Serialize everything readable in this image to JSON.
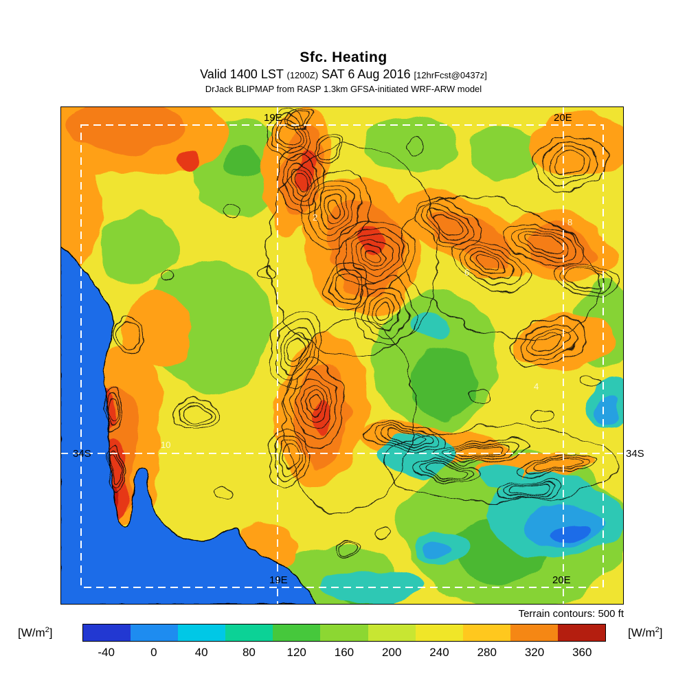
{
  "header": {
    "title": "Sfc. Heating",
    "valid": {
      "prefix": "Valid 1400 LST ",
      "zulu": "(1200Z)",
      "mid": " SAT 6 Aug 2016 ",
      "fcst": "[12hrFcst@0437z]"
    },
    "model_line": "DrJack BLIPMAP from RASP 1.3km GFSA-initiated WRF-ARW model"
  },
  "map": {
    "grid_labels": {
      "top_lon_1": "19E",
      "top_lon_2": "20E",
      "lat_left": "34S",
      "lat_right": "34S",
      "bottom_lon_1": "19E",
      "bottom_lon_2": "20E"
    },
    "faint_labels": [
      "2",
      "8",
      "6",
      "4",
      "10"
    ],
    "terrain_note": "Terrain contours: 500 ft"
  },
  "colorbar": {
    "ticks": [
      "-40",
      "0",
      "40",
      "80",
      "120",
      "160",
      "200",
      "240",
      "280",
      "320",
      "360"
    ],
    "segment_colors": [
      "#2238d2",
      "#1e8cf0",
      "#00c8e6",
      "#0cd296",
      "#46c83c",
      "#8cd732",
      "#c8e632",
      "#f0e628",
      "#ffc81e",
      "#f58714",
      "#b41e0f"
    ],
    "unit": {
      "pre": "[W/m",
      "sup": "2",
      "post": "]"
    }
  },
  "palette": {
    "land_base": "#f0e431",
    "green": "#86d334",
    "green_dark": "#4cb832",
    "orange": "#ffa019",
    "orange_deep": "#f57d14",
    "red": "#e63914",
    "red_dark": "#bf1410",
    "cyan": "#2ec8b4",
    "cyan_blue": "#28a0e1",
    "ocean": "#1d6ce8",
    "contour": "#0a0a0a",
    "grid_dash": "#ffffff"
  },
  "chart_data": {
    "type": "heatmap",
    "title": "Sfc. Heating",
    "units": "W/m^2",
    "colorbar_ticks": [
      -40,
      0,
      40,
      80,
      120,
      160,
      200,
      240,
      280,
      320,
      360
    ],
    "legend_position": "bottom",
    "note": "Terrain contours: 500 ft"
  }
}
